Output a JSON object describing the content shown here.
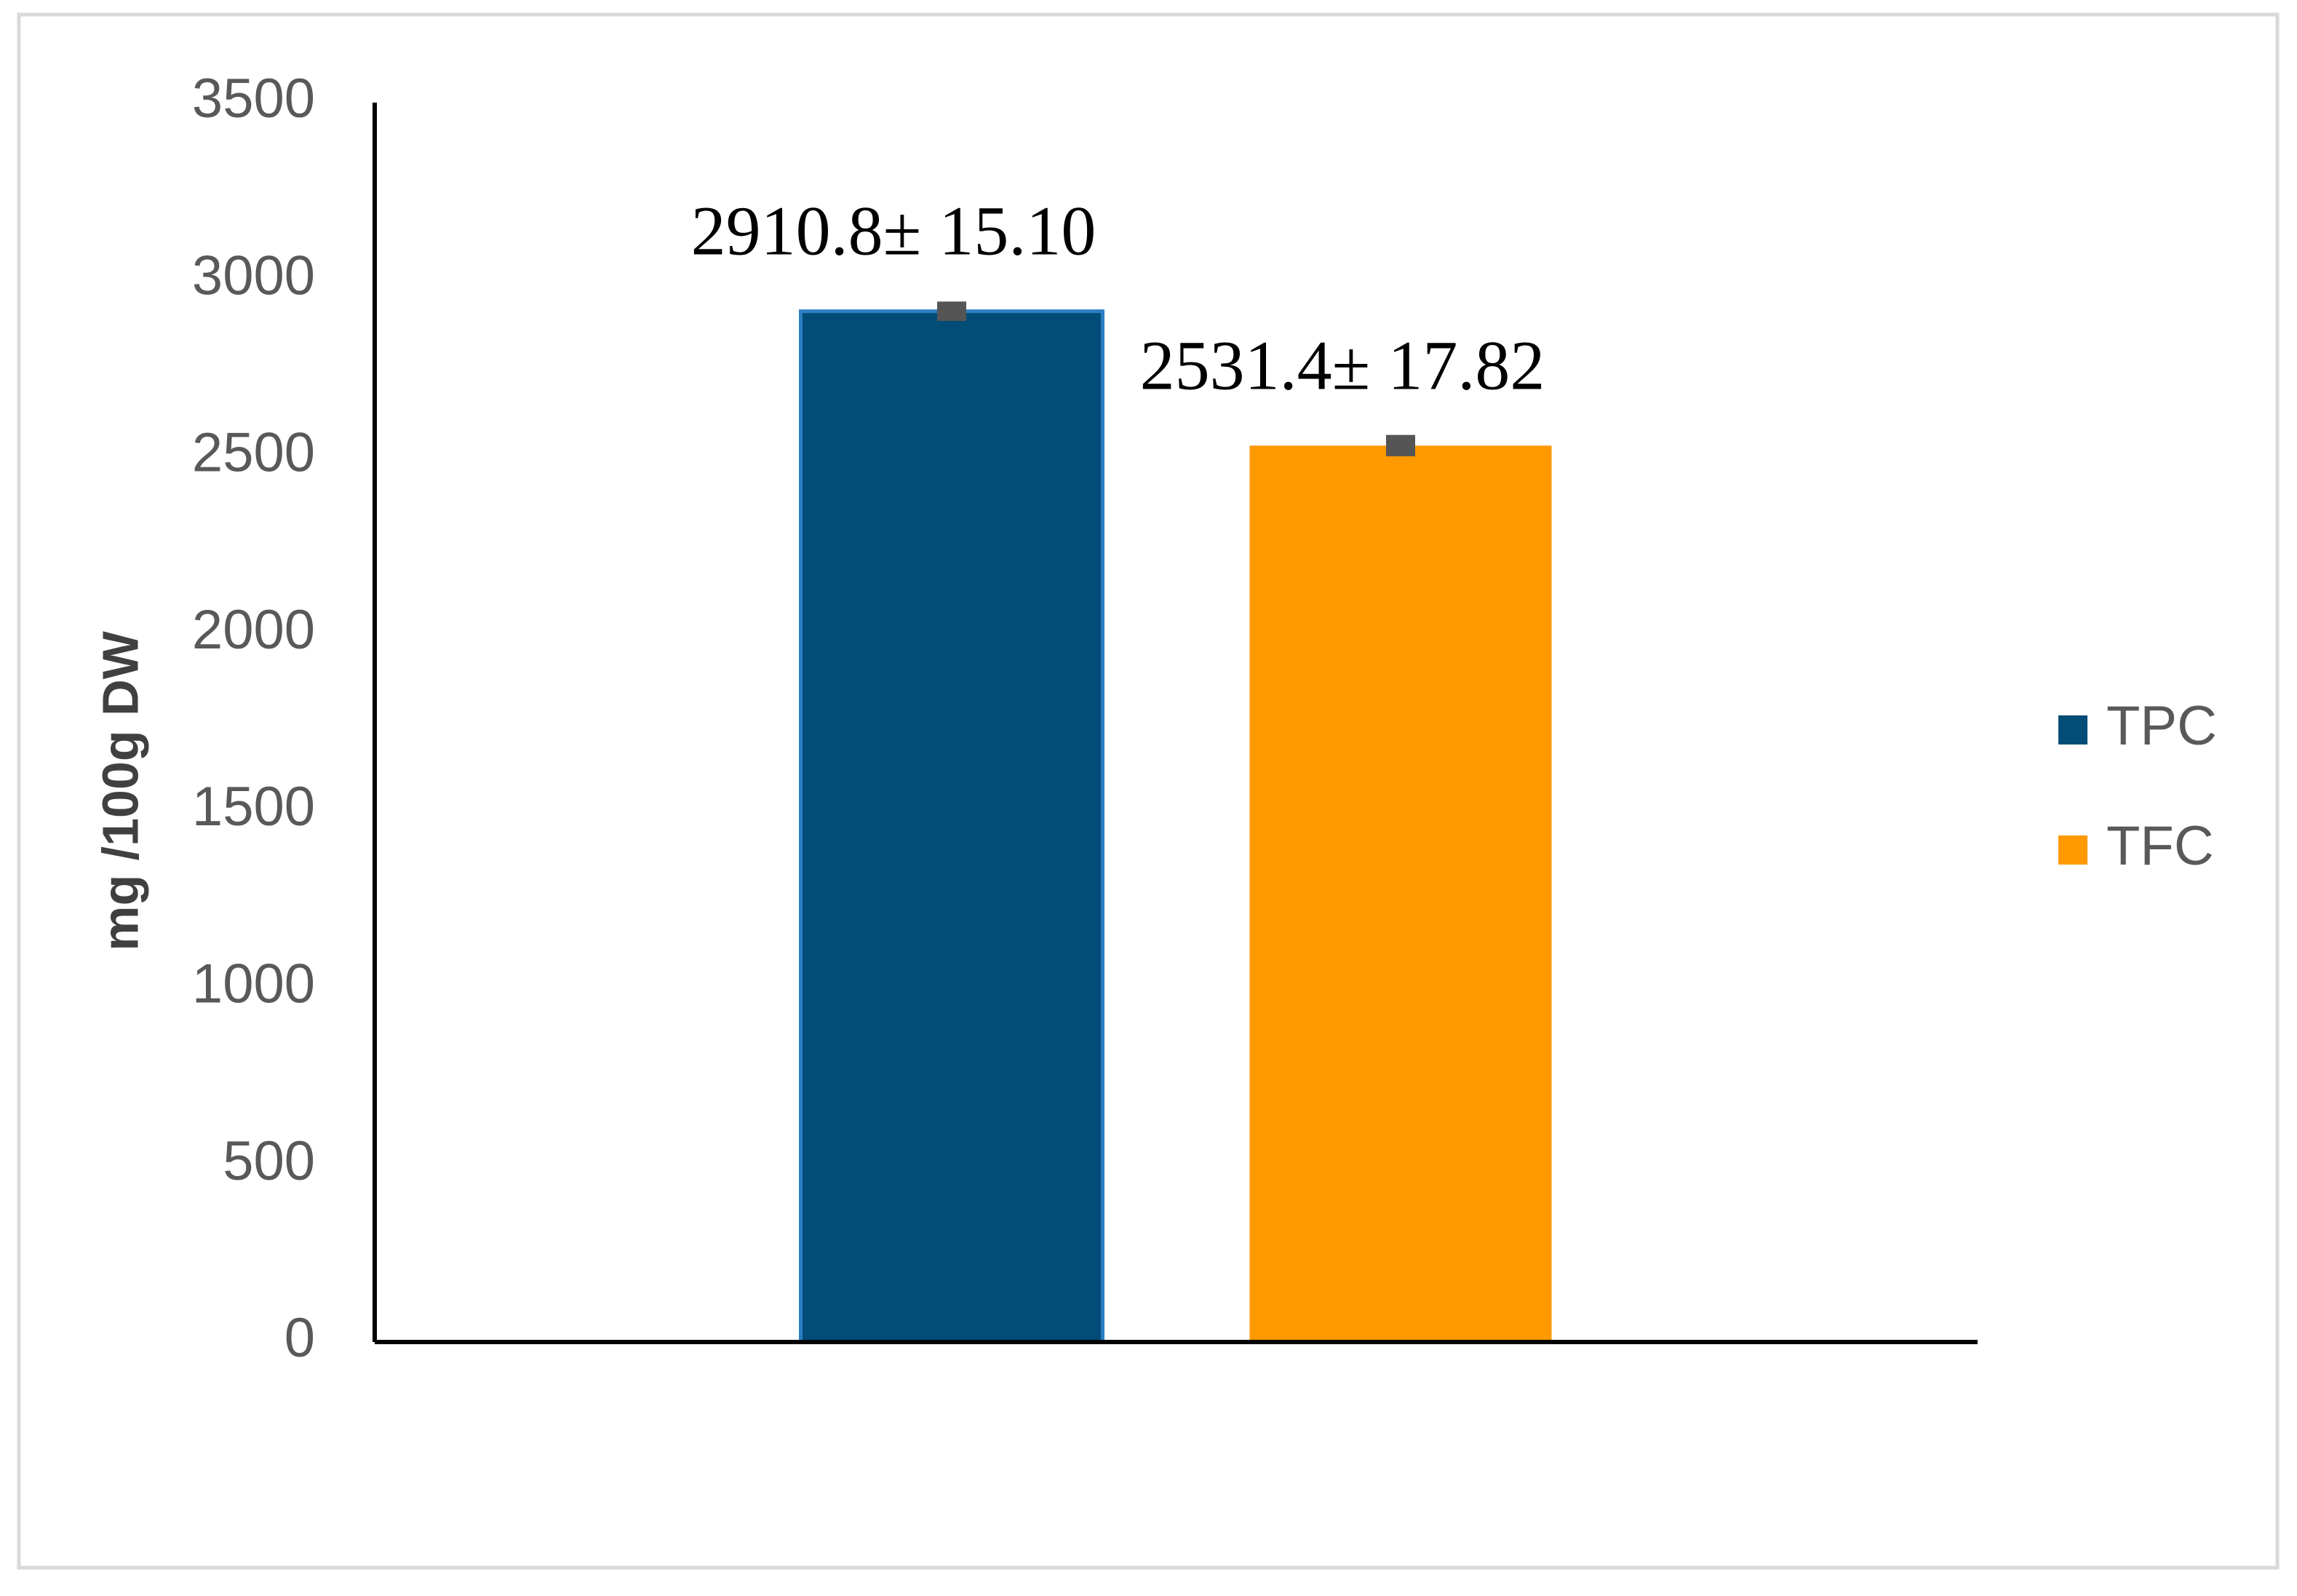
{
  "chart_data": {
    "type": "bar",
    "y_label": "mg /100g DW",
    "categories": [
      null
    ],
    "series": [
      {
        "name": "TPC",
        "color": "#024c78",
        "values": [
          2910.8
        ],
        "errors": [
          15.1
        ],
        "value_labels": [
          "2910.8± 15.10"
        ]
      },
      {
        "name": "TFC",
        "color": "#fe9900",
        "values": [
          2531.4
        ],
        "errors": [
          17.82
        ],
        "value_labels": [
          "2531.4± 17.82"
        ]
      }
    ],
    "ylim": [
      0,
      3500
    ],
    "yticks": [
      0,
      500,
      1000,
      1500,
      2000,
      2500,
      3000,
      3500
    ],
    "grid": false,
    "legend": "right"
  }
}
